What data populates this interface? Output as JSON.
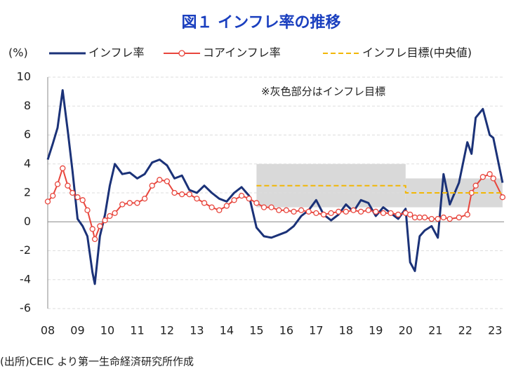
{
  "chart_data": {
    "type": "line",
    "title": "図１ インフレ率の推移",
    "y_label": "(%)",
    "annotation": "※灰色部分はインフレ目標",
    "source": "(出所)CEIC より第一生命経済研究所作成",
    "x": [
      2008.0,
      2008.17,
      2008.33,
      2008.5,
      2008.67,
      2008.83,
      2009.0,
      2009.17,
      2009.33,
      2009.5,
      2009.58,
      2009.75,
      2009.92,
      2010.08,
      2010.25,
      2010.5,
      2010.75,
      2011.0,
      2011.25,
      2011.5,
      2011.75,
      2012.0,
      2012.25,
      2012.5,
      2012.75,
      2013.0,
      2013.25,
      2013.5,
      2013.75,
      2014.0,
      2014.25,
      2014.5,
      2014.75,
      2015.0,
      2015.25,
      2015.5,
      2015.75,
      2016.0,
      2016.25,
      2016.5,
      2016.75,
      2017.0,
      2017.25,
      2017.5,
      2017.75,
      2018.0,
      2018.25,
      2018.5,
      2018.75,
      2019.0,
      2019.25,
      2019.5,
      2019.75,
      2020.0,
      2020.15,
      2020.31,
      2020.47,
      2020.64,
      2020.87,
      2021.08,
      2021.27,
      2021.48,
      2021.79,
      2022.07,
      2022.21,
      2022.35,
      2022.59,
      2022.82,
      2022.94,
      2023.25
    ],
    "series": [
      {
        "name": "インフレ率",
        "color": "#1b3278",
        "style": "solid",
        "values": [
          4.3,
          5.4,
          6.5,
          9.1,
          6.3,
          3.5,
          0.2,
          -0.3,
          -1.0,
          -3.5,
          -4.3,
          -1.0,
          0.5,
          2.5,
          4.0,
          3.3,
          3.4,
          3.0,
          3.3,
          4.1,
          4.3,
          3.9,
          3.0,
          3.2,
          2.2,
          2.0,
          2.5,
          2.0,
          1.6,
          1.4,
          2.0,
          2.4,
          1.8,
          -0.4,
          -1.0,
          -1.1,
          -0.9,
          -0.7,
          -0.3,
          0.4,
          0.8,
          1.5,
          0.5,
          0.1,
          0.5,
          1.2,
          0.7,
          1.5,
          1.3,
          0.4,
          1.0,
          0.6,
          0.2,
          0.9,
          -2.8,
          -3.4,
          -1.0,
          -0.6,
          -0.3,
          -1.1,
          3.3,
          1.2,
          2.7,
          5.5,
          4.7,
          7.2,
          7.8,
          6.0,
          5.8,
          2.7
        ]
      },
      {
        "name": "コアインフレ率",
        "color": "#e8453c",
        "style": "marker",
        "values": [
          1.4,
          1.8,
          2.6,
          3.7,
          2.5,
          2.0,
          1.7,
          1.5,
          0.8,
          -0.5,
          -1.2,
          -0.3,
          0.1,
          0.4,
          0.6,
          1.2,
          1.3,
          1.3,
          1.6,
          2.5,
          2.9,
          2.8,
          2.0,
          1.9,
          1.9,
          1.6,
          1.3,
          1.0,
          0.8,
          1.1,
          1.5,
          1.8,
          1.6,
          1.3,
          1.0,
          1.0,
          0.8,
          0.8,
          0.7,
          0.8,
          0.7,
          0.6,
          0.5,
          0.6,
          0.7,
          0.7,
          0.8,
          0.7,
          0.8,
          0.7,
          0.6,
          0.6,
          0.5,
          0.6,
          0.5,
          0.3,
          0.3,
          0.3,
          0.2,
          0.2,
          0.3,
          0.2,
          0.3,
          0.5,
          2.0,
          2.5,
          3.1,
          3.3,
          3.0,
          1.7
        ]
      },
      {
        "name": "インフレ目標(中央値)",
        "color": "#f2b705",
        "style": "dashed",
        "x": [
          2015,
          2020,
          2020,
          2023.25
        ],
        "values": [
          2.5,
          2.5,
          2.0,
          2.0
        ]
      }
    ],
    "target_band": [
      {
        "x0": 2015,
        "x1": 2020,
        "low": 1,
        "high": 4
      },
      {
        "x0": 2020,
        "x1": 2023.25,
        "low": 1,
        "high": 3
      }
    ],
    "band_color": "#d9d9d9",
    "xlim": [
      2008,
      2023.3
    ],
    "ylim": [
      -6,
      10
    ],
    "xticks": [
      {
        "value": 2008,
        "label": "08"
      },
      {
        "value": 2009,
        "label": "09"
      },
      {
        "value": 2010,
        "label": "10"
      },
      {
        "value": 2011,
        "label": "11"
      },
      {
        "value": 2012,
        "label": "12"
      },
      {
        "value": 2013,
        "label": "13"
      },
      {
        "value": 2014,
        "label": "14"
      },
      {
        "value": 2015,
        "label": "15"
      },
      {
        "value": 2016,
        "label": "16"
      },
      {
        "value": 2017,
        "label": "17"
      },
      {
        "value": 2018,
        "label": "18"
      },
      {
        "value": 2019,
        "label": "19"
      },
      {
        "value": 2020,
        "label": "20"
      },
      {
        "value": 2021,
        "label": "21"
      },
      {
        "value": 2022,
        "label": "22"
      },
      {
        "value": 2023,
        "label": "23"
      }
    ],
    "yticks": [
      -6,
      -4,
      -2,
      0,
      2,
      4,
      6,
      8,
      10
    ],
    "grid": true
  }
}
